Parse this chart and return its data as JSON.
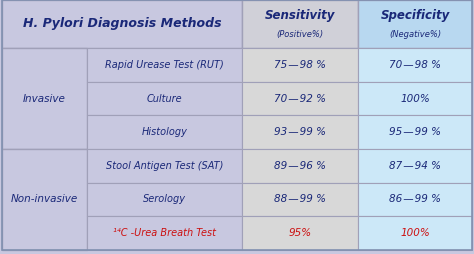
{
  "title": "H. Pylori Diagnosis Methods",
  "rows": [
    [
      "Invasive",
      "Rapid Urease Test (RUT)",
      "75 — 98 %",
      "70 — 98 %"
    ],
    [
      "Invasive",
      "Culture",
      "70 — 92 %",
      "100%"
    ],
    [
      "Invasive",
      "Histology",
      "93 — 99 %",
      "95 — 99 %"
    ],
    [
      "Non-invasive",
      "Stool Antigen Test (SAT)",
      "89 — 96 %",
      "87 — 94 %"
    ],
    [
      "Non-invasive",
      "Serology",
      "88 — 99 %",
      "86 — 99 %"
    ],
    [
      "Non-invasive",
      "¹⁴C -Urea Breath Test",
      "95%",
      "100%"
    ]
  ],
  "bg_left": "#c8c8e0",
  "bg_method": "#c8c8e0",
  "bg_sens": "#d8d8d8",
  "bg_spec": "#cce8f8",
  "bg_header_left": "#c8c8e0",
  "bg_header_sens": "#d0d0d8",
  "bg_header_spec": "#b8d8f0",
  "border_color": "#a0a0b8",
  "tc_normal": "#1a2878",
  "tc_red": "#cc1111",
  "figsize": [
    4.74,
    2.54
  ],
  "dpi": 100
}
